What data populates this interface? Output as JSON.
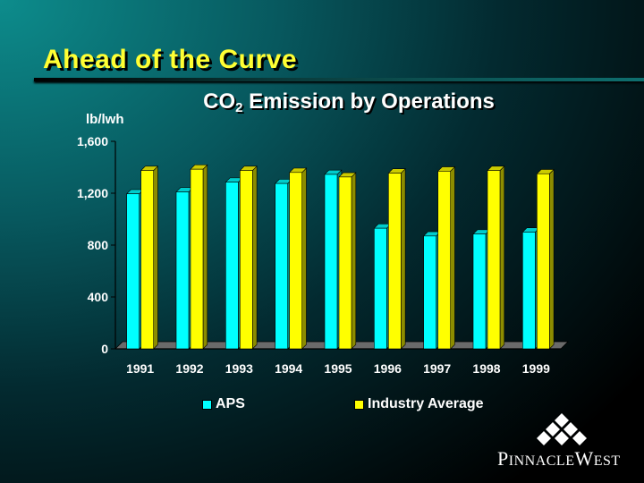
{
  "slide": {
    "title": "Ahead of the Curve",
    "chart_title_main": "CO",
    "chart_title_sub": "2",
    "chart_title_rest": " Emission by Operations",
    "unit_label": "lb/lwh"
  },
  "logo": {
    "text_P": "P",
    "text_rest1": "INNACLE",
    "text_W": "W",
    "text_rest2": "EST"
  },
  "chart_data": {
    "type": "bar",
    "title": "CO2 Emission by Operations",
    "ylabel": "lb/lwh",
    "categories": [
      "1991",
      "1992",
      "1993",
      "1994",
      "1995",
      "1996",
      "1997",
      "1998",
      "1999"
    ],
    "series": [
      {
        "name": "APS",
        "color": "#00ffff",
        "values": [
          1195,
          1210,
          1285,
          1275,
          1345,
          930,
          870,
          885,
          900
        ]
      },
      {
        "name": "Industry Average",
        "color": "#ffff00",
        "values": [
          1375,
          1385,
          1375,
          1360,
          1325,
          1355,
          1370,
          1375,
          1350
        ]
      }
    ],
    "ylim": [
      0,
      1600
    ],
    "yticks": [
      0,
      400,
      800,
      1200,
      1600
    ],
    "ytick_labels": [
      "0",
      "400",
      "800",
      "1,200",
      "1,600"
    ],
    "legend": "bottom",
    "grid": false
  }
}
